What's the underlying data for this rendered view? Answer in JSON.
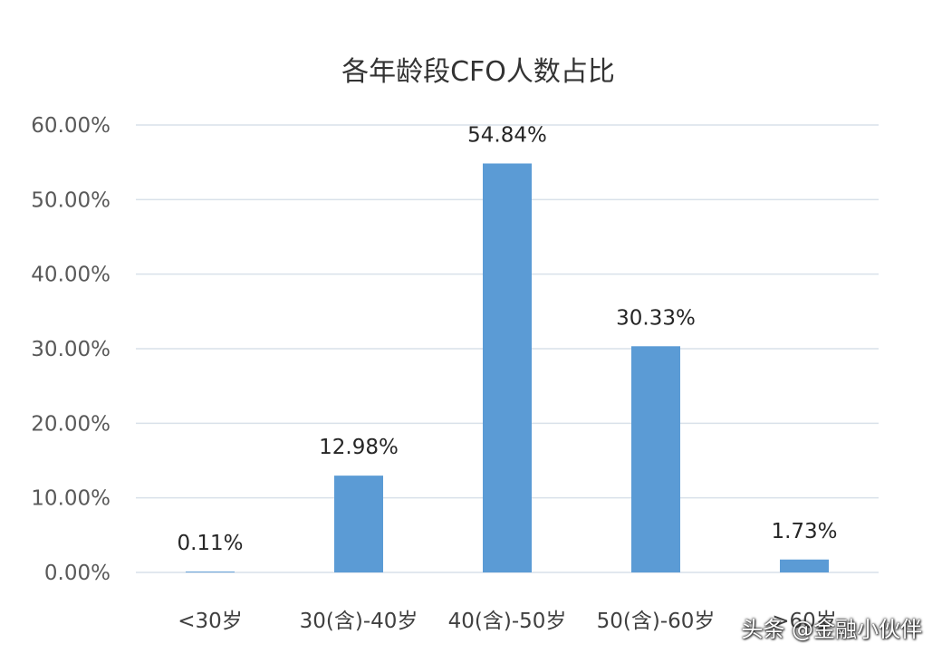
{
  "chart_data": {
    "type": "bar",
    "title": "各年龄段CFO人数占比",
    "categories": [
      "<30岁",
      "30(含)-40岁",
      "40(含)-50岁",
      "50(含)-60岁",
      ">60岁"
    ],
    "values": [
      0.11,
      12.98,
      54.84,
      30.33,
      1.73
    ],
    "data_labels": [
      "0.11%",
      "12.98%",
      "54.84%",
      "30.33%",
      "1.73%"
    ],
    "ylim": [
      0,
      60
    ],
    "yticks": [
      0,
      10,
      20,
      30,
      40,
      50,
      60
    ],
    "ytick_labels": [
      "0.00%",
      "10.00%",
      "20.00%",
      "30.00%",
      "40.00%",
      "50.00%",
      "60.00%"
    ],
    "xlabel": "",
    "ylabel": "",
    "grid": true,
    "legend": "none",
    "bar_color": "#5b9bd5",
    "grid_color": "#d9e1ea"
  },
  "watermark": {
    "text": "头条 @金融小伙伴"
  }
}
